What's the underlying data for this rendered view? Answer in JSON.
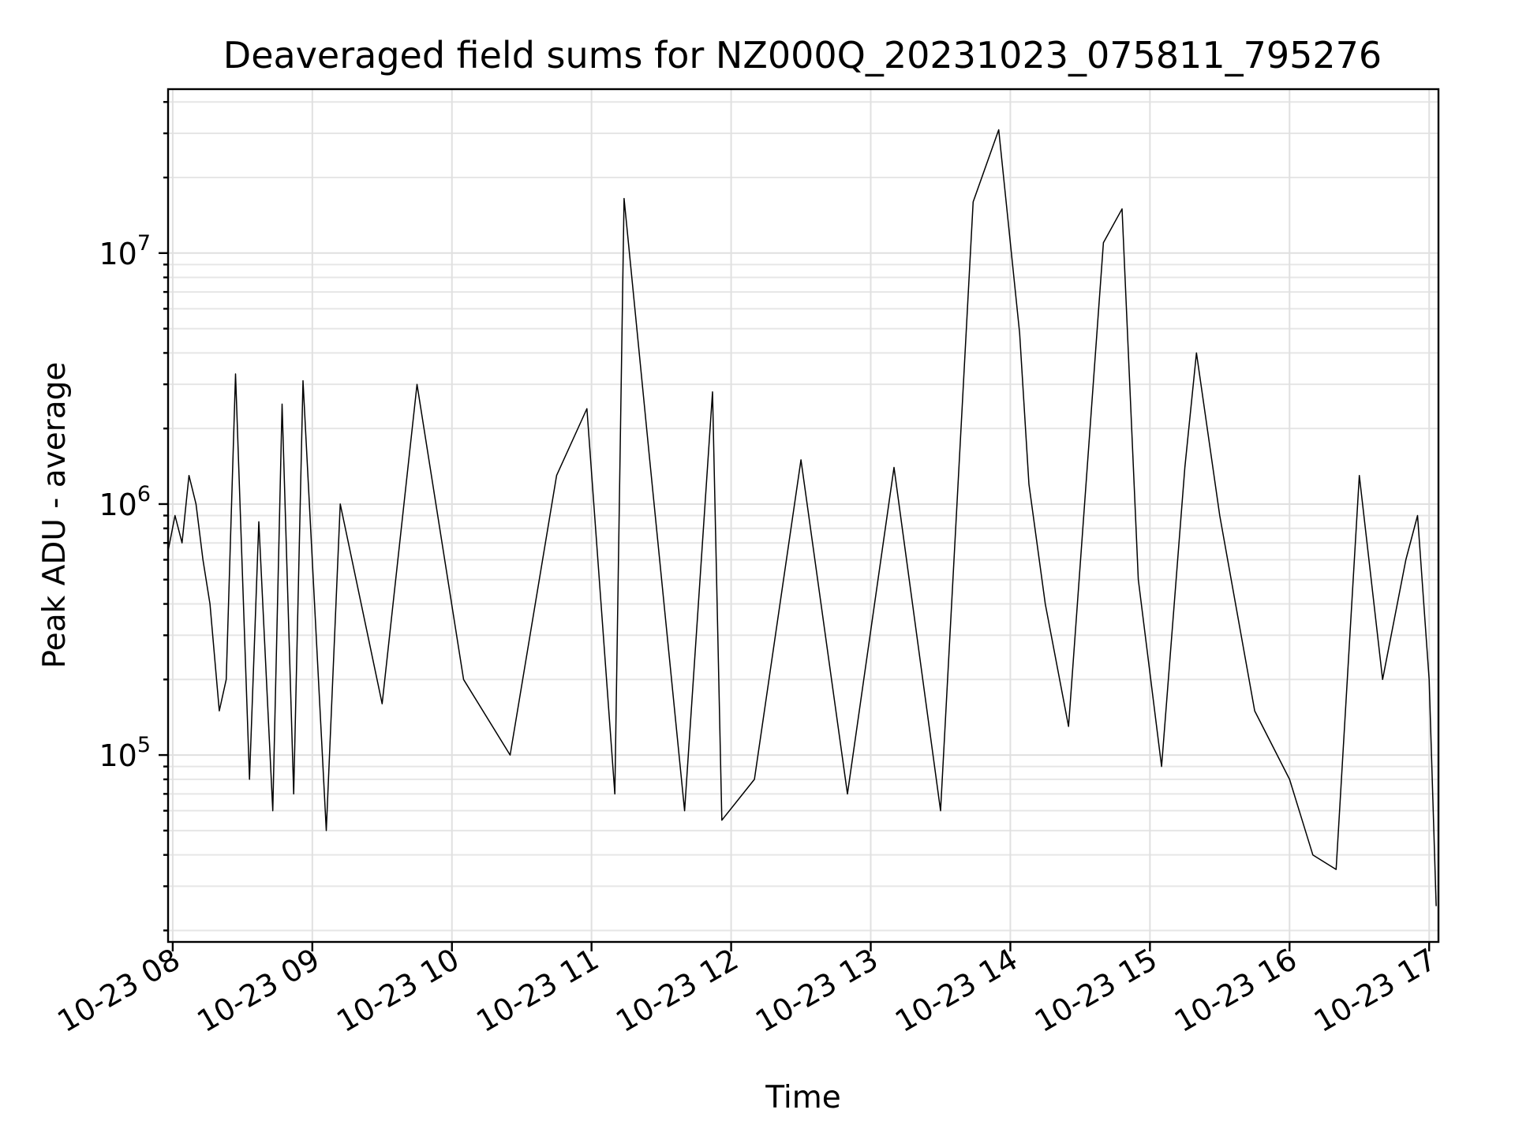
{
  "chart_data": {
    "type": "line",
    "title": "Deaveraged field sums for NZ000Q_20231023_075811_795276",
    "xlabel": "Time",
    "ylabel": "Peak ADU - average",
    "yscale": "log",
    "grid": true,
    "legend": "none",
    "x_ticks": [
      "10-23 08",
      "10-23 09",
      "10-23 10",
      "10-23 11",
      "10-23 12",
      "10-23 13",
      "10-23 14",
      "10-23 15",
      "10-23 16",
      "10-23 17"
    ],
    "y_ticks": [
      {
        "base": "10",
        "exp": "5",
        "value": 100000
      },
      {
        "base": "10",
        "exp": "6",
        "value": 1000000
      },
      {
        "base": "10",
        "exp": "7",
        "value": 10000000
      }
    ],
    "xlim": [
      "2023-10-23 07:58",
      "2023-10-23 17:04"
    ],
    "ylim": [
      18000,
      45000000
    ],
    "series": [
      {
        "color": "#000000",
        "x": [
          "2023-10-23 07:58",
          "2023-10-23 08:01",
          "2023-10-23 08:04",
          "2023-10-23 08:07",
          "2023-10-23 08:10",
          "2023-10-23 08:13",
          "2023-10-23 08:16",
          "2023-10-23 08:20",
          "2023-10-23 08:23",
          "2023-10-23 08:27",
          "2023-10-23 08:33",
          "2023-10-23 08:37",
          "2023-10-23 08:43",
          "2023-10-23 08:47",
          "2023-10-23 08:52",
          "2023-10-23 08:56",
          "2023-10-23 09:06",
          "2023-10-23 09:12",
          "2023-10-23 09:30",
          "2023-10-23 09:45",
          "2023-10-23 10:05",
          "2023-10-23 10:25",
          "2023-10-23 10:45",
          "2023-10-23 10:58",
          "2023-10-23 11:10",
          "2023-10-23 11:14",
          "2023-10-23 11:25",
          "2023-10-23 11:40",
          "2023-10-23 11:52",
          "2023-10-23 11:56",
          "2023-10-23 12:10",
          "2023-10-23 12:30",
          "2023-10-23 12:50",
          "2023-10-23 13:10",
          "2023-10-23 13:30",
          "2023-10-23 13:44",
          "2023-10-23 13:55",
          "2023-10-23 14:04",
          "2023-10-23 14:08",
          "2023-10-23 14:15",
          "2023-10-23 14:25",
          "2023-10-23 14:40",
          "2023-10-23 14:48",
          "2023-10-23 14:55",
          "2023-10-23 15:05",
          "2023-10-23 15:15",
          "2023-10-23 15:20",
          "2023-10-23 15:30",
          "2023-10-23 15:45",
          "2023-10-23 16:00",
          "2023-10-23 16:10",
          "2023-10-23 16:20",
          "2023-10-23 16:30",
          "2023-10-23 16:40",
          "2023-10-23 16:50",
          "2023-10-23 16:55",
          "2023-10-23 17:00",
          "2023-10-23 17:03"
        ],
        "y": [
          650000,
          900000,
          700000,
          1300000,
          1000000,
          600000,
          400000,
          150000,
          200000,
          3300000,
          80000,
          850000,
          60000,
          2500000,
          70000,
          3100000,
          50000,
          1000000,
          160000,
          3000000,
          200000,
          100000,
          1300000,
          2400000,
          70000,
          16500000,
          1500000,
          60000,
          2800000,
          55000,
          80000,
          1500000,
          70000,
          1400000,
          60000,
          16000000,
          31000000,
          4800000,
          1200000,
          400000,
          130000,
          11000000,
          15000000,
          500000,
          90000,
          1400000,
          4000000,
          900000,
          150000,
          80000,
          40000,
          35000,
          1300000,
          200000,
          600000,
          900000,
          200000,
          25000
        ]
      }
    ]
  }
}
